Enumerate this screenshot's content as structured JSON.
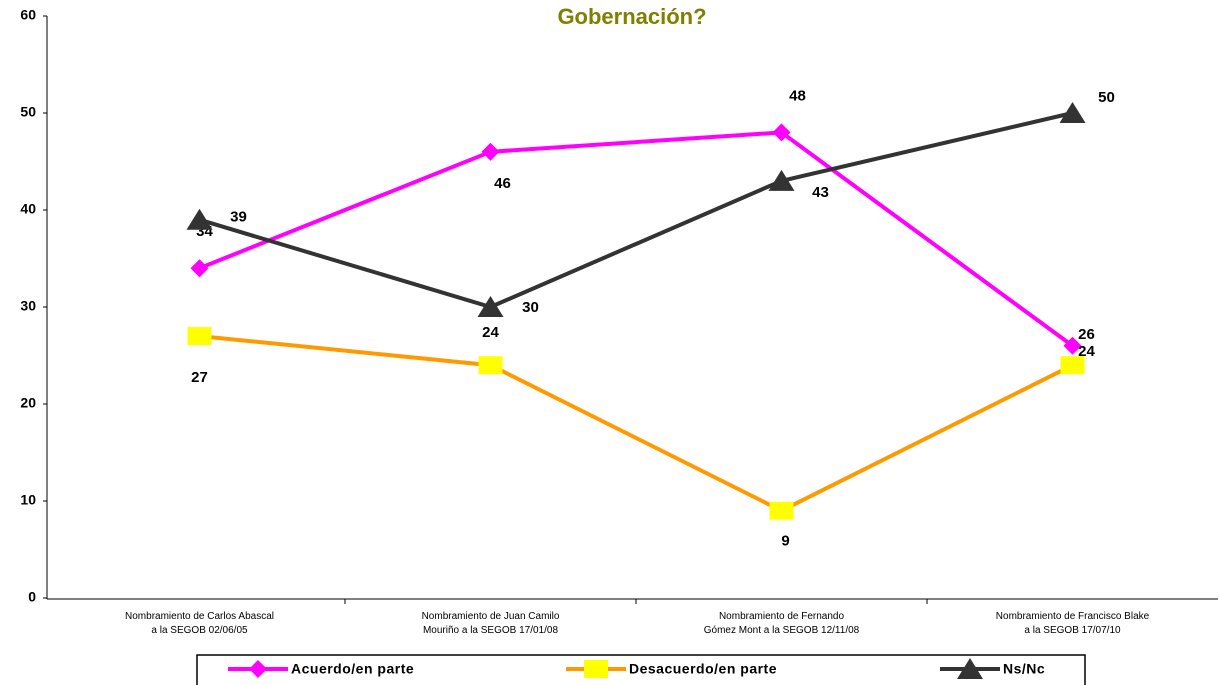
{
  "chart_data": {
    "type": "line",
    "title": "Gobernación?",
    "categories": [
      [
        "Nombramiento de Carlos Abascal",
        "a la SEGOB 02/06/05"
      ],
      [
        "Nombramiento de Juan Camilo",
        "Mouriño a la SEGOB 17/01/08"
      ],
      [
        "Nombramiento de Fernando",
        "Gómez Mont a la SEGOB 12/11/08"
      ],
      [
        "Nombramiento de Francisco Blake",
        "a la SEGOB 17/07/10"
      ]
    ],
    "series": [
      {
        "name": "Acuerdo/en parte",
        "color": "#ff00ff",
        "marker_color": "#ff00ff",
        "marker": "diamond",
        "values": [
          34,
          46,
          48,
          26
        ]
      },
      {
        "name": "Desacuerdo/en parte",
        "color": "#ff9900",
        "marker_color": "#ffff00",
        "marker": "square",
        "values": [
          27,
          24,
          9,
          24
        ]
      },
      {
        "name": "Ns/Nc",
        "color": "#333333",
        "marker_color": "#333333",
        "marker": "triangle",
        "values": [
          39,
          30,
          43,
          50
        ]
      }
    ],
    "ylim": [
      0,
      60
    ],
    "yticks": [
      0,
      10,
      20,
      30,
      40,
      50,
      60
    ],
    "grid": false,
    "legend": "bottom"
  }
}
